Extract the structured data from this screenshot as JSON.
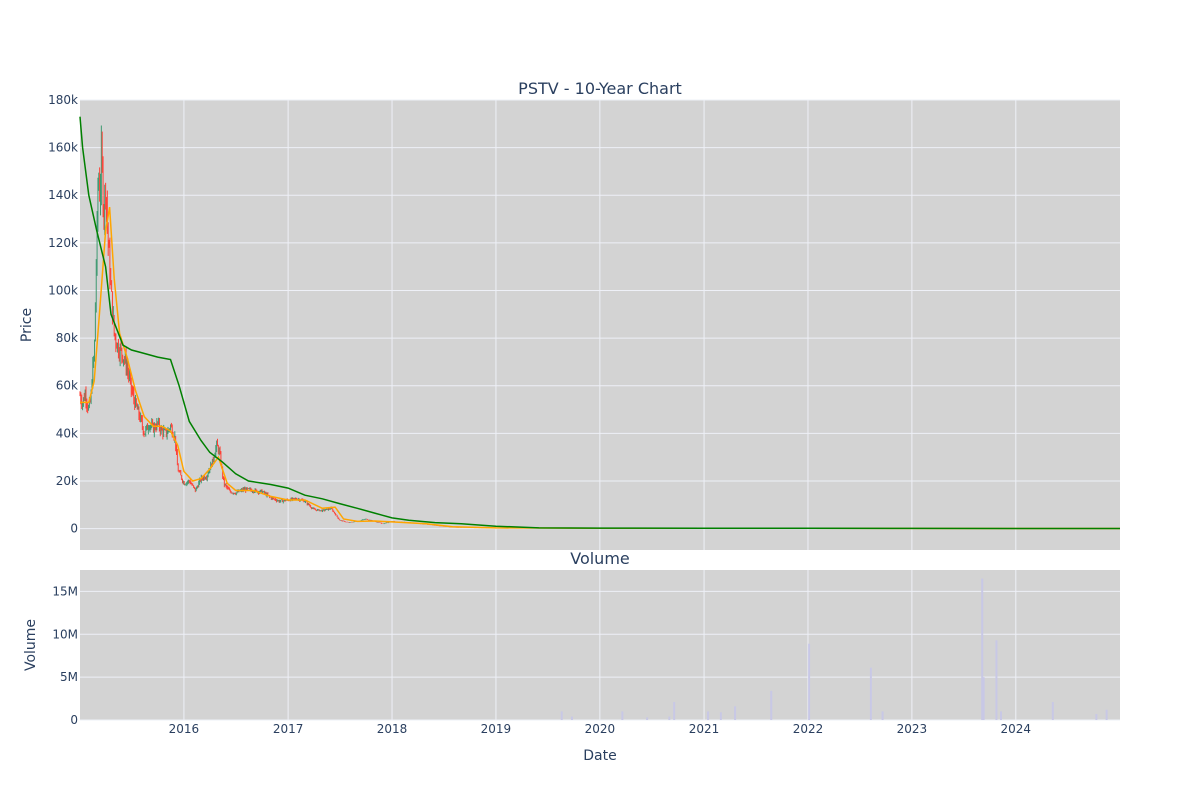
{
  "chart_data": [
    {
      "type": "candlestick",
      "title": "PSTV - 10-Year Chart",
      "xlabel": "",
      "ylabel": "Price",
      "ylim": [
        -9000,
        180000
      ],
      "y_ticks": [
        0,
        20000,
        40000,
        60000,
        80000,
        100000,
        120000,
        140000,
        160000,
        180000
      ],
      "y_tick_labels": [
        "0",
        "20k",
        "40k",
        "60k",
        "80k",
        "100k",
        "120k",
        "140k",
        "160k",
        "180k"
      ],
      "xlim": [
        "2015-01-01",
        "2025-01-01"
      ],
      "grid": true,
      "legend": "none",
      "colors": {
        "up": "#3d9970",
        "down": "#ff4136",
        "ma_short": "#ffa500",
        "ma_long": "#008000",
        "background": "#d3d3d3"
      },
      "price_path": [
        [
          "2015-01-01",
          56000
        ],
        [
          "2015-01-10",
          53000
        ],
        [
          "2015-01-20",
          57000
        ],
        [
          "2015-01-30",
          50000
        ],
        [
          "2015-02-08",
          54000
        ],
        [
          "2015-02-15",
          68000
        ],
        [
          "2015-02-20",
          72000
        ],
        [
          "2015-02-24",
          95000
        ],
        [
          "2015-03-01",
          120000
        ],
        [
          "2015-03-06",
          150000
        ],
        [
          "2015-03-12",
          140000
        ],
        [
          "2015-03-18",
          158000
        ],
        [
          "2015-03-25",
          132000
        ],
        [
          "2015-04-01",
          145000
        ],
        [
          "2015-04-10",
          120000
        ],
        [
          "2015-04-20",
          100000
        ],
        [
          "2015-05-01",
          82000
        ],
        [
          "2015-05-15",
          76000
        ],
        [
          "2015-06-01",
          73000
        ],
        [
          "2015-06-15",
          68000
        ],
        [
          "2015-07-01",
          58000
        ],
        [
          "2015-07-15",
          52000
        ],
        [
          "2015-08-01",
          46000
        ],
        [
          "2015-08-15",
          40000
        ],
        [
          "2015-09-01",
          44000
        ],
        [
          "2015-09-15",
          42000
        ],
        [
          "2015-10-01",
          44000
        ],
        [
          "2015-10-15",
          41000
        ],
        [
          "2015-11-01",
          40000
        ],
        [
          "2015-11-15",
          43000
        ],
        [
          "2015-12-01",
          38000
        ],
        [
          "2015-12-10",
          25000
        ],
        [
          "2016-01-01",
          19000
        ],
        [
          "2016-01-20",
          20000
        ],
        [
          "2016-02-10",
          16000
        ],
        [
          "2016-03-01",
          21000
        ],
        [
          "2016-03-20",
          22000
        ],
        [
          "2016-04-10",
          28000
        ],
        [
          "2016-04-25",
          35000
        ],
        [
          "2016-05-05",
          32000
        ],
        [
          "2016-05-20",
          19000
        ],
        [
          "2016-06-10",
          15500
        ],
        [
          "2016-07-01",
          15000
        ],
        [
          "2016-08-01",
          16500
        ],
        [
          "2016-09-01",
          16000
        ],
        [
          "2016-10-01",
          15500
        ],
        [
          "2016-11-01",
          13000
        ],
        [
          "2016-12-01",
          11500
        ],
        [
          "2017-01-01",
          12000
        ],
        [
          "2017-02-01",
          12500
        ],
        [
          "2017-03-01",
          11500
        ],
        [
          "2017-04-01",
          8000
        ],
        [
          "2017-05-01",
          7500
        ],
        [
          "2017-06-01",
          8500
        ],
        [
          "2017-07-01",
          3500
        ],
        [
          "2017-08-01",
          2500
        ],
        [
          "2017-09-01",
          3000
        ],
        [
          "2017-10-01",
          4000
        ],
        [
          "2017-11-01",
          3000
        ],
        [
          "2017-12-01",
          2000
        ],
        [
          "2018-01-01",
          3000
        ],
        [
          "2018-03-01",
          2500
        ],
        [
          "2018-05-01",
          1800
        ],
        [
          "2018-07-01",
          800
        ],
        [
          "2018-09-01",
          300
        ],
        [
          "2018-12-01",
          200
        ],
        [
          "2019-06-01",
          150
        ],
        [
          "2020-01-01",
          120
        ],
        [
          "2021-01-01",
          100
        ],
        [
          "2022-01-01",
          90
        ],
        [
          "2023-01-01",
          70
        ],
        [
          "2023-09-01",
          40
        ],
        [
          "2024-06-01",
          30
        ],
        [
          "2025-01-01",
          20
        ]
      ],
      "ma_short": [
        [
          "2015-01-01",
          53000
        ],
        [
          "2015-02-01",
          53000
        ],
        [
          "2015-02-20",
          62000
        ],
        [
          "2015-03-10",
          90000
        ],
        [
          "2015-04-01",
          125000
        ],
        [
          "2015-04-15",
          135000
        ],
        [
          "2015-05-01",
          105000
        ],
        [
          "2015-05-20",
          82000
        ],
        [
          "2015-06-15",
          72000
        ],
        [
          "2015-07-15",
          58000
        ],
        [
          "2015-08-15",
          47000
        ],
        [
          "2015-09-15",
          43000
        ],
        [
          "2015-10-15",
          43000
        ],
        [
          "2015-11-15",
          41000
        ],
        [
          "2015-12-10",
          35000
        ],
        [
          "2016-01-01",
          24000
        ],
        [
          "2016-02-01",
          20000
        ],
        [
          "2016-03-01",
          21000
        ],
        [
          "2016-04-01",
          25000
        ],
        [
          "2016-05-01",
          30000
        ],
        [
          "2016-06-01",
          19000
        ],
        [
          "2016-07-01",
          16000
        ],
        [
          "2016-09-01",
          16000
        ],
        [
          "2016-11-01",
          13500
        ],
        [
          "2017-01-01",
          12000
        ],
        [
          "2017-03-01",
          12000
        ],
        [
          "2017-05-01",
          8500
        ],
        [
          "2017-06-15",
          9000
        ],
        [
          "2017-07-15",
          4000
        ],
        [
          "2017-09-01",
          3000
        ],
        [
          "2017-11-01",
          3200
        ],
        [
          "2018-01-01",
          2800
        ],
        [
          "2018-05-01",
          2000
        ],
        [
          "2018-08-01",
          800
        ],
        [
          "2019-01-01",
          300
        ],
        [
          "2020-01-01",
          150
        ],
        [
          "2022-01-01",
          100
        ],
        [
          "2024-01-01",
          50
        ],
        [
          "2025-01-01",
          30
        ]
      ],
      "ma_long": [
        [
          "2015-01-01",
          173000
        ],
        [
          "2015-01-10",
          160000
        ],
        [
          "2015-02-01",
          140000
        ],
        [
          "2015-03-01",
          125000
        ],
        [
          "2015-04-01",
          110000
        ],
        [
          "2015-04-20",
          90000
        ],
        [
          "2015-06-01",
          77000
        ],
        [
          "2015-07-01",
          75000
        ],
        [
          "2015-08-01",
          74000
        ],
        [
          "2015-10-01",
          72000
        ],
        [
          "2015-11-15",
          71000
        ],
        [
          "2015-12-15",
          60000
        ],
        [
          "2016-01-20",
          45000
        ],
        [
          "2016-03-01",
          37000
        ],
        [
          "2016-04-01",
          32000
        ],
        [
          "2016-05-15",
          28000
        ],
        [
          "2016-07-01",
          23000
        ],
        [
          "2016-08-15",
          20000
        ],
        [
          "2016-11-01",
          18500
        ],
        [
          "2017-01-01",
          17000
        ],
        [
          "2017-03-01",
          14000
        ],
        [
          "2017-05-01",
          12500
        ],
        [
          "2017-07-01",
          10500
        ],
        [
          "2017-09-01",
          8500
        ],
        [
          "2017-11-01",
          6500
        ],
        [
          "2018-01-01",
          4500
        ],
        [
          "2018-03-01",
          3500
        ],
        [
          "2018-06-01",
          2500
        ],
        [
          "2018-09-01",
          2000
        ],
        [
          "2019-01-01",
          1000
        ],
        [
          "2019-06-01",
          300
        ],
        [
          "2020-01-01",
          200
        ],
        [
          "2021-01-01",
          150
        ],
        [
          "2022-01-01",
          100
        ],
        [
          "2023-01-01",
          80
        ],
        [
          "2024-01-01",
          50
        ],
        [
          "2025-01-01",
          30
        ]
      ]
    },
    {
      "type": "bar",
      "title": "Volume",
      "xlabel": "Date",
      "ylabel": "Volume",
      "ylim": [
        0,
        17500000
      ],
      "y_ticks": [
        0,
        5000000,
        10000000,
        15000000
      ],
      "y_tick_labels": [
        "0",
        "5M",
        "10M",
        "15M"
      ],
      "x_ticks": [
        "2016-01-01",
        "2017-01-01",
        "2018-01-01",
        "2019-01-01",
        "2020-01-01",
        "2021-01-01",
        "2022-01-01",
        "2023-01-01",
        "2024-01-01"
      ],
      "x_tick_labels": [
        "2016",
        "2017",
        "2018",
        "2019",
        "2020",
        "2021",
        "2022",
        "2023",
        "2024"
      ],
      "bar_color": "#c8c8e6",
      "values": [
        [
          "2019-08-20",
          1000000
        ],
        [
          "2019-09-25",
          400000
        ],
        [
          "2020-03-20",
          1000000
        ],
        [
          "2020-06-15",
          300000
        ],
        [
          "2020-09-01",
          400000
        ],
        [
          "2020-09-18",
          2100000
        ],
        [
          "2021-01-15",
          1000000
        ],
        [
          "2021-03-01",
          900000
        ],
        [
          "2021-04-20",
          1600000
        ],
        [
          "2021-08-25",
          3400000
        ],
        [
          "2022-01-05",
          8900000
        ],
        [
          "2022-08-10",
          6100000
        ],
        [
          "2022-09-20",
          1000000
        ],
        [
          "2023-09-05",
          16500000
        ],
        [
          "2023-09-10",
          5000000
        ],
        [
          "2023-10-25",
          9300000
        ],
        [
          "2023-11-10",
          1000000
        ],
        [
          "2024-05-10",
          2100000
        ],
        [
          "2024-10-10",
          700000
        ],
        [
          "2024-11-15",
          1200000
        ]
      ]
    }
  ]
}
